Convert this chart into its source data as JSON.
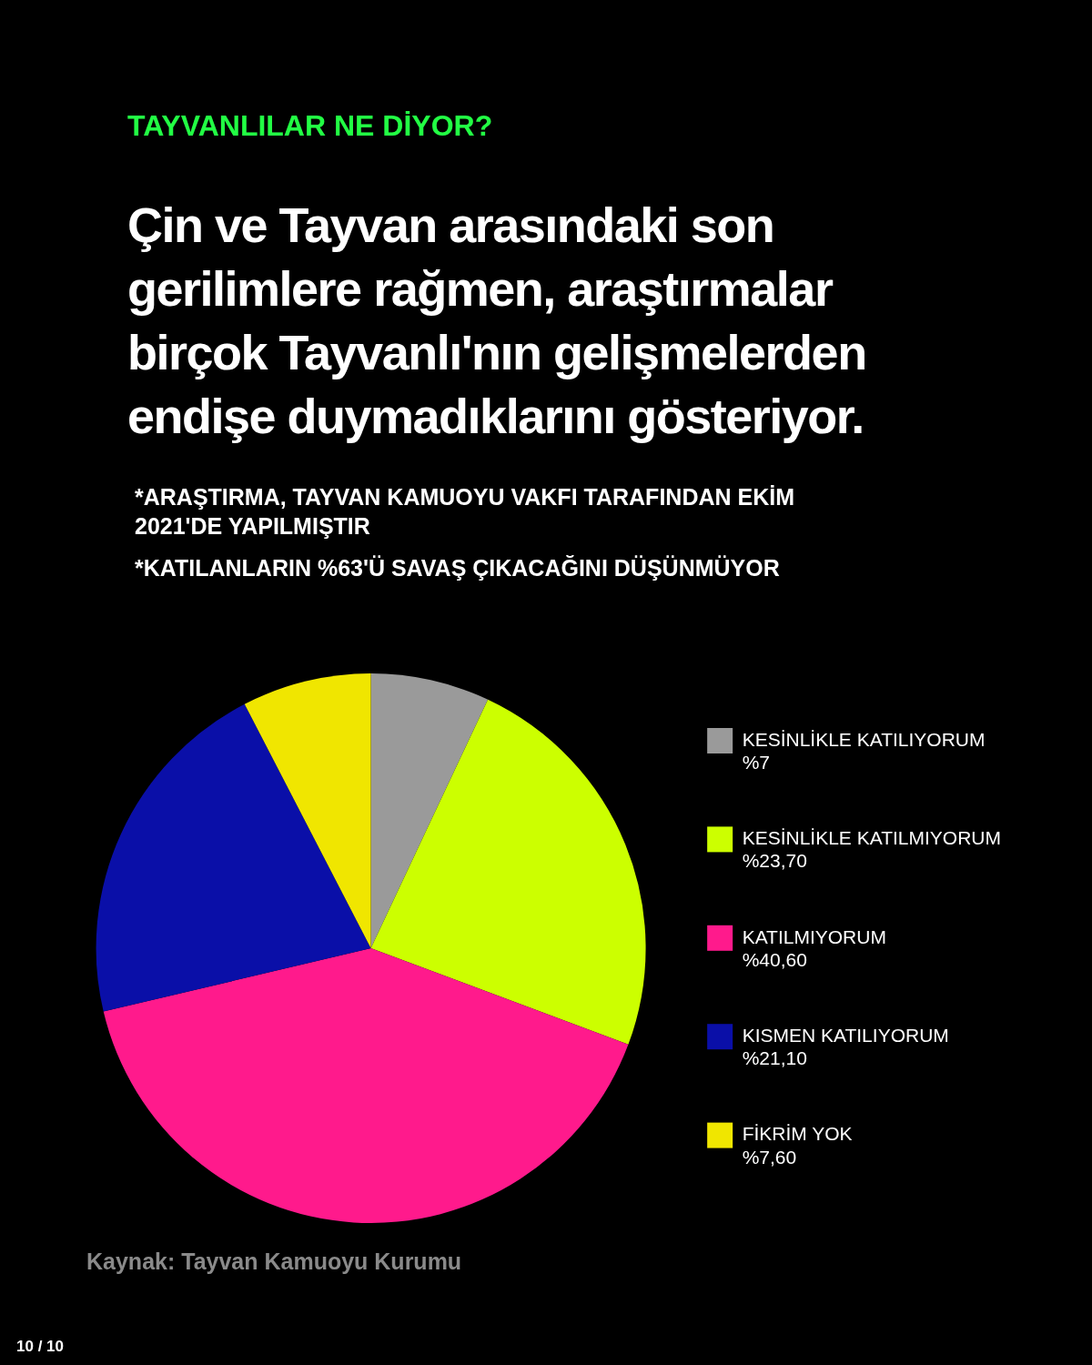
{
  "chart_data": {
    "type": "pie",
    "subtitle": "TAYVANLILAR NE DİYOR?",
    "title": "Çin ve Tayvan arasındaki son gerilimlere rağmen, araştırmalar birçok Tayvanlı'nın gelişmelerden endişe duymadıklarını gösteriyor.",
    "annotations": [
      "*ARAŞTIRMA, TAYVAN KAMUOYU VAKFI TARAFINDAN EKİM 2021'DE YAPILMIŞTIR",
      "*KATILANLARIN %63'Ü SAVAŞ ÇIKACAĞINI DÜŞÜNMÜYOR",
      "Kaynak: Tayvan Kamuoyu Kurumu",
      "10 / 10"
    ],
    "categories": [
      "KESİNLİKLE KATILIYORUM",
      "KESİNLİKLE KATILMIYORUM",
      "KATILMIYORUM",
      "KISMEN KATILIYORUM",
      "FİKRİM YOK"
    ],
    "values": [
      7,
      23.7,
      40.6,
      21.1,
      7.6
    ],
    "value_labels": [
      "%7",
      "%23,70",
      "%40,60",
      "%21,10",
      "%7,60"
    ],
    "colors": [
      "#9a9a9a",
      "#ccff00",
      "#ff1a8c",
      "#0a0fa8",
      "#f0e600"
    ],
    "legend": "right"
  }
}
